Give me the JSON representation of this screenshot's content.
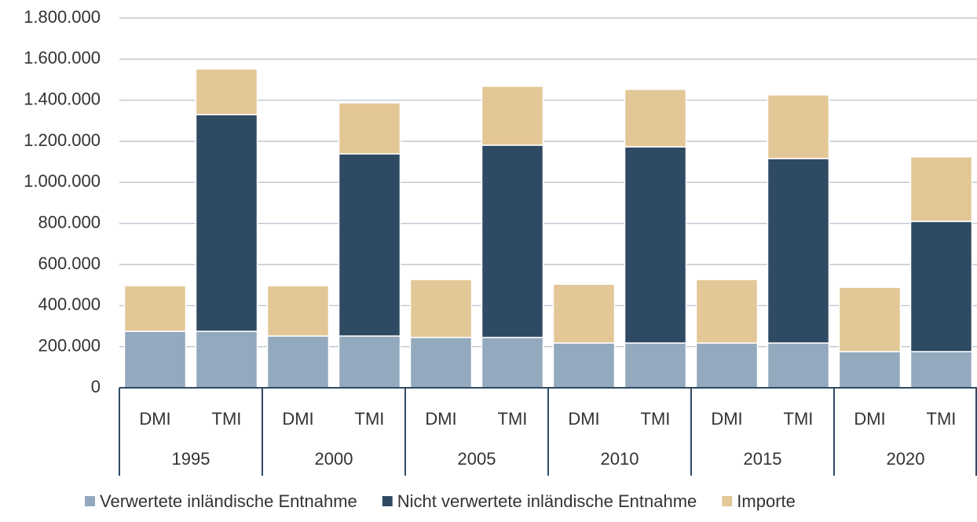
{
  "chart_data": {
    "type": "stacked-bar",
    "categories": [
      "DMI",
      "TMI",
      "DMI",
      "TMI",
      "DMI",
      "TMI",
      "DMI",
      "TMI",
      "DMI",
      "TMI",
      "DMI",
      "TMI"
    ],
    "groups": [
      "1995",
      "2000",
      "2005",
      "2010",
      "2015",
      "2020"
    ],
    "series": [
      {
        "name": "Verwertete inländische Entnahme",
        "color": "#93a9bd",
        "values": [
          275000,
          275000,
          252000,
          252000,
          245000,
          245000,
          218000,
          218000,
          218000,
          218000,
          176000,
          176000
        ]
      },
      {
        "name": "Nicht verwertete inländische Entnahme",
        "color": "#2f4a63",
        "values": [
          0,
          1055000,
          0,
          887000,
          0,
          936000,
          0,
          955000,
          0,
          898000,
          0,
          634000
        ]
      },
      {
        "name": "Importe",
        "color": "#e3c797",
        "values": [
          222000,
          222000,
          245000,
          248000,
          282000,
          287000,
          286000,
          280000,
          309000,
          310000,
          313000,
          314000
        ]
      }
    ],
    "ylim": [
      0,
      1800000
    ],
    "yticks": [
      0,
      {
        "value": 200000,
        "label": "200.000"
      },
      {
        "value": 400000,
        "label": "400.000"
      },
      {
        "value": 600000,
        "label": "600.000"
      },
      {
        "value": 800000,
        "label": "800.000"
      },
      {
        "value": 1000000,
        "label": "1.000.000"
      },
      {
        "value": 1200000,
        "label": "1.200.000"
      },
      {
        "value": 1400000,
        "label": "1.400.000"
      },
      {
        "value": 1600000,
        "label": "1.600.000"
      },
      {
        "value": 1800000,
        "label": "1.800.000"
      }
    ],
    "grid": true,
    "legend": "bottom"
  }
}
